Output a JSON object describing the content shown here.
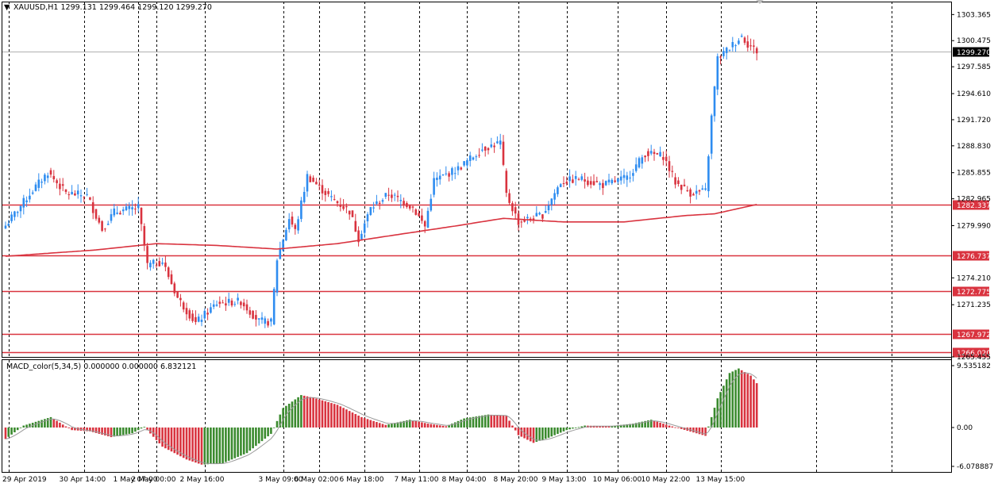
{
  "colors": {
    "bull": "#2e8cf0",
    "bear": "#d9333f",
    "level_line": "#d9333f",
    "ma_line": "#d9333f",
    "macd_up": "#3a8a2e",
    "macd_down": "#d9333f",
    "signal": "#9a9a9a",
    "grid": "#000000",
    "price_line": "#b0b0b0"
  },
  "chart_data": [
    {
      "type": "candlestick",
      "title": "XAUUSD,H1  1299.131 1299.464 1299.120 1299.270",
      "symbol_marker": "▼",
      "ylim": [
        1265.455,
        1304.8
      ],
      "y_ticks": [
        "1303.365",
        "1300.475",
        "1297.585",
        "1294.610",
        "1291.720",
        "1288.830",
        "1285.855",
        "1282.965",
        "1279.990",
        "1274.210",
        "1271.235",
        "1265.455"
      ],
      "x_ticks": [
        "29 Apr 2019",
        "30 Apr 14:00",
        "1 May 07:00",
        "2 May 00:00",
        "2 May 16:00",
        "3 May 09:00",
        "6 May 02:00",
        "6 May 18:00",
        "7 May 11:00",
        "8 May 04:00",
        "8 May 20:00",
        "9 May 13:00",
        "10 May 06:00",
        "10 May 22:00",
        "13 May 15:00"
      ],
      "current_price": "1299.270",
      "levels": [
        "1282.337",
        "1276.737",
        "1272.775",
        "1267.972",
        "1266.020"
      ],
      "anchors": [
        {
          "i": 0,
          "p": 1280.0
        },
        {
          "i": 8,
          "p": 1283.5
        },
        {
          "i": 14,
          "p": 1285.9
        },
        {
          "i": 20,
          "p": 1283.6
        },
        {
          "i": 27,
          "p": 1283.3
        },
        {
          "i": 32,
          "p": 1279.6
        },
        {
          "i": 36,
          "p": 1281.5
        },
        {
          "i": 44,
          "p": 1282.0
        },
        {
          "i": 47,
          "p": 1275.6
        },
        {
          "i": 52,
          "p": 1276.0
        },
        {
          "i": 57,
          "p": 1272.0
        },
        {
          "i": 63,
          "p": 1269.2
        },
        {
          "i": 70,
          "p": 1271.4
        },
        {
          "i": 78,
          "p": 1271.6
        },
        {
          "i": 84,
          "p": 1269.4
        },
        {
          "i": 88,
          "p": 1269.3
        },
        {
          "i": 90,
          "p": 1276.3
        },
        {
          "i": 94,
          "p": 1280.8
        },
        {
          "i": 96,
          "p": 1279.4
        },
        {
          "i": 100,
          "p": 1285.5
        },
        {
          "i": 108,
          "p": 1283.0
        },
        {
          "i": 114,
          "p": 1281.6
        },
        {
          "i": 117,
          "p": 1278.6
        },
        {
          "i": 121,
          "p": 1281.9
        },
        {
          "i": 127,
          "p": 1283.5
        },
        {
          "i": 135,
          "p": 1282.0
        },
        {
          "i": 139,
          "p": 1279.9
        },
        {
          "i": 142,
          "p": 1285.0
        },
        {
          "i": 150,
          "p": 1286.3
        },
        {
          "i": 158,
          "p": 1288.5
        },
        {
          "i": 164,
          "p": 1289.2
        },
        {
          "i": 166,
          "p": 1283.4
        },
        {
          "i": 170,
          "p": 1280.4
        },
        {
          "i": 178,
          "p": 1281.2
        },
        {
          "i": 184,
          "p": 1284.8
        },
        {
          "i": 190,
          "p": 1285.2
        },
        {
          "i": 198,
          "p": 1284.5
        },
        {
          "i": 206,
          "p": 1285.3
        },
        {
          "i": 212,
          "p": 1288.0
        },
        {
          "i": 218,
          "p": 1287.7
        },
        {
          "i": 222,
          "p": 1284.8
        },
        {
          "i": 227,
          "p": 1283.6
        },
        {
          "i": 232,
          "p": 1283.8
        },
        {
          "i": 234,
          "p": 1292.0
        },
        {
          "i": 236,
          "p": 1298.5
        },
        {
          "i": 240,
          "p": 1299.7
        },
        {
          "i": 244,
          "p": 1301.0
        },
        {
          "i": 246,
          "p": 1300.1
        },
        {
          "i": 249,
          "p": 1299.3
        }
      ],
      "ma_points": [
        {
          "i": 0,
          "p": 1276.6
        },
        {
          "i": 30,
          "p": 1277.3
        },
        {
          "i": 50,
          "p": 1278.0
        },
        {
          "i": 70,
          "p": 1277.8
        },
        {
          "i": 90,
          "p": 1277.4
        },
        {
          "i": 110,
          "p": 1278.0
        },
        {
          "i": 130,
          "p": 1279.0
        },
        {
          "i": 150,
          "p": 1280.0
        },
        {
          "i": 165,
          "p": 1280.8
        },
        {
          "i": 185,
          "p": 1280.4
        },
        {
          "i": 205,
          "p": 1280.4
        },
        {
          "i": 225,
          "p": 1281.1
        },
        {
          "i": 235,
          "p": 1281.3
        },
        {
          "i": 249,
          "p": 1282.337
        }
      ]
    },
    {
      "type": "histogram",
      "title": "MACD_color(5,34,5) 0.000000 0.000000 6.832121",
      "ylim": [
        -6.078887,
        9.535182
      ],
      "y_ticks": [
        "9.535182",
        "0.00",
        "-6.078887"
      ],
      "anchors": [
        {
          "i": 0,
          "v": -1.8
        },
        {
          "i": 6,
          "v": 0.3
        },
        {
          "i": 15,
          "v": 1.6
        },
        {
          "i": 22,
          "v": -0.4
        },
        {
          "i": 28,
          "v": -0.6
        },
        {
          "i": 35,
          "v": -1.5
        },
        {
          "i": 42,
          "v": -0.9
        },
        {
          "i": 46,
          "v": 0.1
        },
        {
          "i": 52,
          "v": -3.0
        },
        {
          "i": 60,
          "v": -5.0
        },
        {
          "i": 65,
          "v": -5.8
        },
        {
          "i": 72,
          "v": -5.6
        },
        {
          "i": 80,
          "v": -4.0
        },
        {
          "i": 88,
          "v": -1.0
        },
        {
          "i": 92,
          "v": 3.0
        },
        {
          "i": 98,
          "v": 5.0
        },
        {
          "i": 102,
          "v": 4.6
        },
        {
          "i": 110,
          "v": 3.5
        },
        {
          "i": 118,
          "v": 1.6
        },
        {
          "i": 126,
          "v": 0.4
        },
        {
          "i": 134,
          "v": 1.2
        },
        {
          "i": 140,
          "v": 0.6
        },
        {
          "i": 146,
          "v": 0.2
        },
        {
          "i": 152,
          "v": 1.4
        },
        {
          "i": 160,
          "v": 2.0
        },
        {
          "i": 166,
          "v": 1.8
        },
        {
          "i": 170,
          "v": -1.2
        },
        {
          "i": 175,
          "v": -2.4
        },
        {
          "i": 180,
          "v": -1.6
        },
        {
          "i": 186,
          "v": -0.4
        },
        {
          "i": 192,
          "v": 0.3
        },
        {
          "i": 200,
          "v": 0.2
        },
        {
          "i": 208,
          "v": 0.6
        },
        {
          "i": 214,
          "v": 1.2
        },
        {
          "i": 220,
          "v": 0.3
        },
        {
          "i": 226,
          "v": -0.5
        },
        {
          "i": 232,
          "v": -1.3
        },
        {
          "i": 236,
          "v": 4.5
        },
        {
          "i": 240,
          "v": 8.4
        },
        {
          "i": 243,
          "v": 9.1
        },
        {
          "i": 247,
          "v": 8.0
        },
        {
          "i": 249,
          "v": 6.832121
        }
      ]
    }
  ]
}
